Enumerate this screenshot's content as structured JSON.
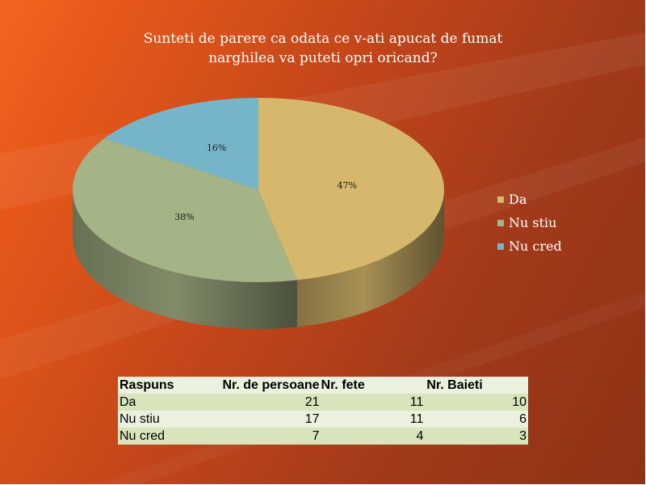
{
  "chart_data": {
    "type": "pie",
    "title": "Sunteti de parere ca odata ce v-ati apucat de fumat\nnarghilea va puteti opri oricand?",
    "labels": [
      "Da",
      "Nu stiu",
      "Nu cred"
    ],
    "values": [
      21,
      17,
      7
    ],
    "percent_labels": [
      "47%",
      "38%",
      "16%"
    ],
    "colors": [
      "#d6b86c",
      "#a5b487",
      "#76b5c9"
    ],
    "legend_position": "right",
    "style": "3d"
  },
  "table": {
    "headers": [
      "Raspuns",
      "Nr. de persoane",
      "Nr. fete",
      "Nr. Baieti"
    ],
    "rows": [
      [
        "Da",
        "21",
        "11",
        "10"
      ],
      [
        "Nu stiu",
        "17",
        "11",
        "6"
      ],
      [
        "Nu cred",
        "7",
        "4",
        "3"
      ]
    ],
    "row_colors": [
      "#ebf1de",
      "#d8e4bc",
      "#ebf1de",
      "#d8e4bc"
    ]
  }
}
